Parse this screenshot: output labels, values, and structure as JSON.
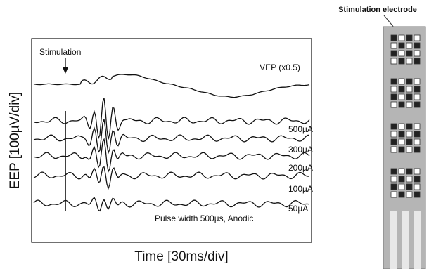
{
  "plot": {
    "y_label": "EEP [100µV/div]",
    "x_label": "Time [30ms/div]",
    "stimulation": "Stimulation",
    "note": "Pulse width 500µs, Anodic"
  },
  "traces": [
    {
      "label": "VEP (x0.5)"
    },
    {
      "label": "500µA"
    },
    {
      "label": "300µA"
    },
    {
      "label": "200µA"
    },
    {
      "label": "100µA"
    },
    {
      "label": "50µA"
    }
  ],
  "electrode": {
    "label": "Stimulation electrode"
  }
}
